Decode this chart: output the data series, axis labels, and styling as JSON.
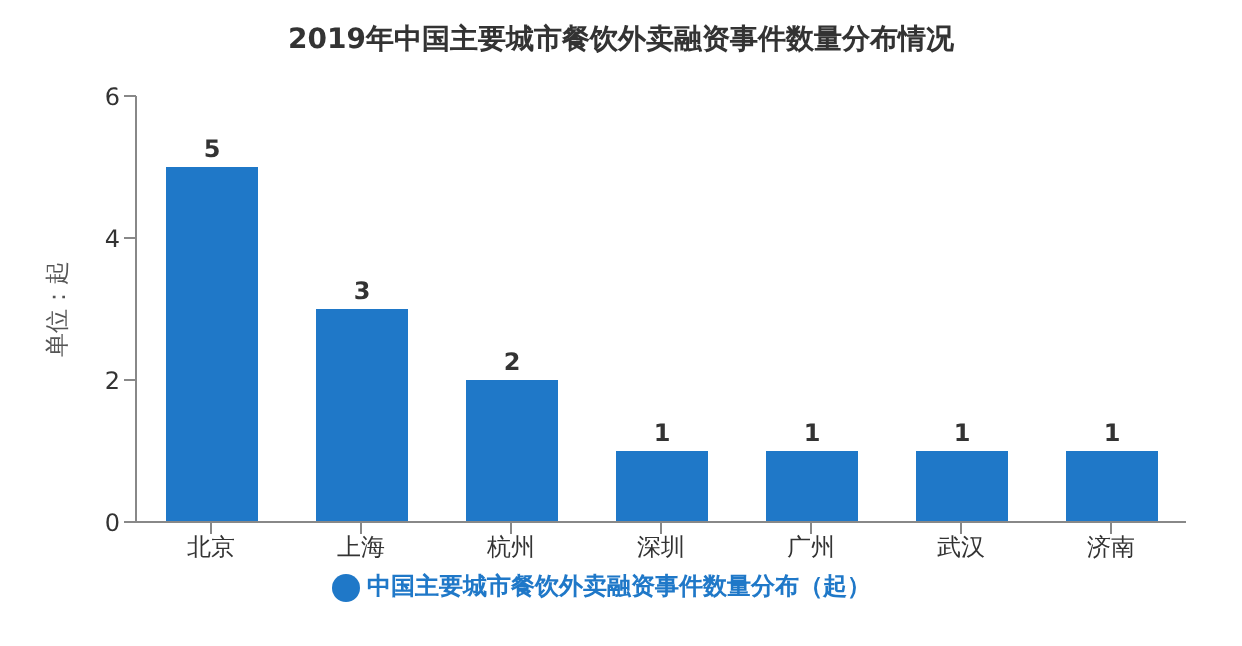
{
  "chart_data": {
    "type": "bar",
    "title": "2019年中国主要城市餐饮外卖融资事件数量分布情况",
    "ylabel": "单位：起",
    "categories": [
      "北京",
      "上海",
      "杭州",
      "深圳",
      "广州",
      "武汉",
      "济南"
    ],
    "series": [
      {
        "name": "中国主要城市餐饮外卖融资事件数量分布（起）",
        "color": "#1f78c8",
        "values": [
          5,
          3,
          2,
          1,
          1,
          1,
          1
        ]
      }
    ],
    "ylim": [
      0,
      6
    ],
    "yticks": [
      0,
      2,
      4,
      6
    ],
    "grid": false,
    "legend": "bottom",
    "data_labels": true
  }
}
